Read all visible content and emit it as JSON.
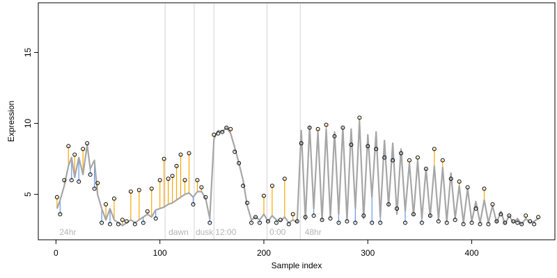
{
  "chart_data": {
    "type": "scatter",
    "title": "",
    "xlabel": "Sample index",
    "ylabel": "Expression",
    "xlim": [
      -17,
      480
    ],
    "ylim": [
      1.8,
      18.5
    ],
    "xticks": [
      0,
      100,
      200,
      300,
      400
    ],
    "yticks": [
      5,
      10,
      15
    ],
    "grid": false,
    "legend": "none",
    "colors": {
      "fitted_line": "#a6a6a6",
      "residual_up": "#ffa500",
      "residual_down": "#6495ed",
      "points": "#000000",
      "divider": "#d3d3d3",
      "annotation": "#b4b4b4"
    },
    "dividers": [
      105,
      133,
      152,
      203,
      235
    ],
    "annotations": [
      {
        "x": 2,
        "label": "24hr"
      },
      {
        "x": 107,
        "label": "dawn"
      },
      {
        "x": 133,
        "label": "dusk"
      },
      {
        "x": 152,
        "label": "12:00"
      },
      {
        "x": 204,
        "label": "0:00"
      },
      {
        "x": 238,
        "label": "48hr"
      }
    ],
    "series": [
      {
        "x": [
          1,
          4,
          8,
          12,
          15,
          18,
          22,
          26,
          30,
          33,
          37,
          40,
          44,
          48,
          52,
          56,
          60,
          64,
          68,
          72,
          76,
          80,
          84,
          88,
          92,
          96,
          100,
          104,
          108,
          112,
          116,
          120,
          124,
          128,
          132,
          136,
          140,
          144,
          148,
          152,
          156,
          160,
          164,
          168,
          172,
          176,
          180,
          184,
          188,
          192,
          196,
          200,
          204,
          208,
          212,
          216,
          220,
          224,
          228,
          232,
          236,
          240,
          244,
          248,
          252,
          256,
          260,
          264,
          268,
          272,
          276,
          280,
          284,
          288,
          292,
          296,
          300,
          304,
          308,
          312,
          316,
          320,
          324,
          328,
          332,
          336,
          340,
          344,
          348,
          352,
          356,
          360,
          364,
          368,
          372,
          376,
          380,
          384,
          388,
          392,
          396,
          400,
          404,
          408,
          412,
          416,
          420,
          424,
          428,
          432,
          436,
          440,
          444,
          448,
          452,
          456,
          460,
          464
        ],
        "fitted": [
          4.0,
          4.6,
          5.6,
          7.0,
          7.6,
          6.2,
          7.6,
          6.4,
          8.5,
          6.8,
          7.4,
          5.0,
          4.0,
          3.2,
          4.0,
          3.2,
          3.0,
          2.8,
          3.0,
          3.2,
          3.0,
          3.2,
          3.4,
          3.6,
          3.4,
          3.9,
          4.0,
          4.1,
          4.3,
          4.4,
          4.6,
          4.8,
          5.0,
          5.1,
          4.8,
          5.2,
          5.2,
          4.7,
          3.3,
          8.9,
          9.5,
          9.4,
          9.7,
          9.3,
          8.3,
          7.2,
          6.0,
          4.2,
          3.2,
          3.4,
          3.2,
          3.6,
          3.1,
          3.5,
          3.2,
          3.1,
          3.4,
          3.0,
          3.2,
          3.0,
          9.5,
          3.2,
          9.8,
          4.0,
          9.4,
          3.2,
          9.6,
          3.4,
          9.4,
          3.6,
          9.7,
          3.2,
          9.6,
          4.0,
          10.2,
          3.3,
          9.2,
          4.8,
          9.4,
          3.4,
          8.8,
          4.2,
          8.6,
          3.6,
          8.2,
          3.8,
          7.2,
          3.5,
          7.4,
          3.3,
          6.8,
          3.4,
          7.0,
          3.2,
          6.9,
          3.1,
          6.5,
          3.3,
          5.6,
          3.0,
          5.4,
          3.1,
          4.5,
          3.0,
          4.6,
          3.0,
          4.2,
          3.0,
          3.8,
          2.9,
          3.5,
          3.0,
          3.3,
          2.9,
          3.3,
          3.0,
          3.1,
          3.3
        ],
        "observed": [
          4.8,
          3.6,
          6.0,
          8.4,
          6.0,
          7.8,
          5.9,
          8.2,
          8.6,
          6.4,
          5.4,
          5.8,
          3.0,
          4.3,
          2.9,
          4.7,
          2.9,
          3.2,
          3.1,
          5.2,
          2.9,
          5.3,
          3.0,
          3.8,
          5.4,
          3.3,
          6.0,
          7.5,
          6.1,
          6.3,
          7.0,
          7.8,
          6.0,
          7.9,
          4.3,
          6.0,
          5.5,
          4.8,
          3.0,
          9.2,
          9.3,
          9.4,
          9.7,
          9.6,
          8.0,
          7.2,
          5.6,
          4.4,
          3.0,
          3.4,
          3.0,
          4.9,
          3.1,
          5.6,
          3.0,
          3.2,
          6.1,
          2.9,
          3.6,
          3.1,
          8.6,
          3.4,
          9.7,
          3.5,
          9.6,
          3.2,
          9.9,
          3.3,
          9.1,
          3.0,
          9.7,
          3.1,
          8.5,
          3.0,
          10.4,
          3.5,
          8.4,
          3.0,
          8.2,
          3.0,
          7.6,
          4.3,
          7.4,
          4.0,
          7.9,
          3.0,
          7.4,
          3.6,
          7.6,
          3.0,
          6.8,
          3.5,
          8.2,
          3.1,
          7.4,
          3.0,
          6.1,
          3.2,
          5.9,
          2.9,
          5.5,
          3.0,
          4.0,
          2.9,
          5.4,
          2.9,
          4.3,
          3.1,
          3.6,
          3.0,
          3.5,
          3.1,
          3.0,
          2.9,
          3.5,
          3.1,
          2.9,
          3.4
        ]
      }
    ]
  }
}
